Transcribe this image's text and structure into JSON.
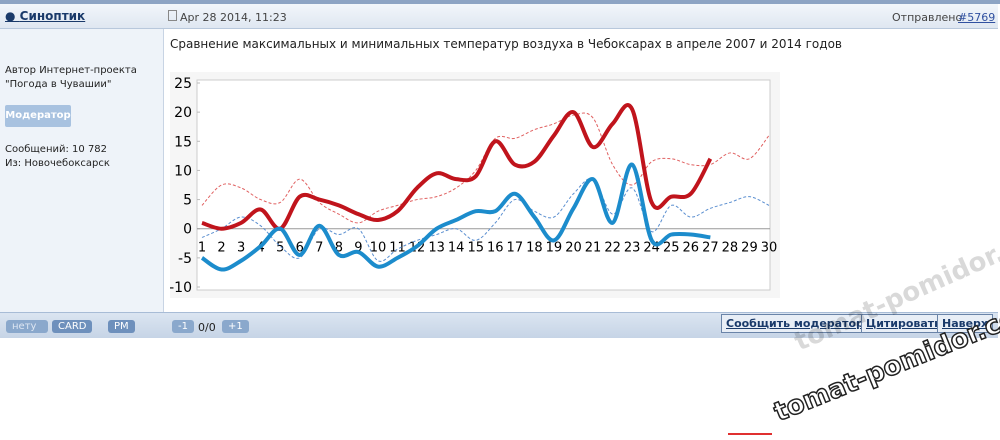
{
  "header": {
    "author": "Синоптик",
    "date": "Apr 28 2014, 11:23",
    "sent": "Отправлено",
    "post_number": "#5769"
  },
  "sidebar": {
    "about": "Автор Интернет-проекта",
    "project": "\"Погода в Чувашии\"",
    "role": "Модератор",
    "posts": "Сообщений: 10 782",
    "from": "Из: Новочебоксарск"
  },
  "post": {
    "text": "Сравнение максимальных и минимальных температур воздуха в Чебоксарах в апреле 2007 и 2014 годов"
  },
  "footer": {
    "status": "нету",
    "card": "CARD",
    "pm": "PM",
    "minus": "-1",
    "rating": "0/0",
    "plus": "+1",
    "report": "Сообщить модератору",
    "quote": "Цитировать",
    "top": "Наверх"
  },
  "watermark": "tomat-pomidor.com",
  "chart_data": {
    "type": "line",
    "categories": [
      "1",
      "2",
      "3",
      "4",
      "5",
      "6",
      "7",
      "8",
      "9",
      "10",
      "11",
      "12",
      "13",
      "14",
      "15",
      "16",
      "17",
      "18",
      "19",
      "20",
      "21",
      "22",
      "23",
      "24",
      "25",
      "26",
      "27",
      "28",
      "29",
      "30"
    ],
    "ylim": [
      -10,
      25
    ],
    "yticks": [
      -10,
      -5,
      0,
      5,
      10,
      15,
      20,
      25
    ],
    "grid": false,
    "series": [
      {
        "color": "#e06060",
        "dashed": true,
        "width": 1,
        "values": [
          4,
          7.5,
          7,
          5,
          4.5,
          8.5,
          4.5,
          2.5,
          1,
          3,
          4,
          5,
          5.5,
          7,
          10,
          15.5,
          15.5,
          17,
          18,
          19.5,
          19,
          11,
          7.5,
          11.5,
          12,
          11,
          11,
          13,
          12,
          16
        ]
      },
      {
        "color": "#5b8fd0",
        "dashed": true,
        "width": 1,
        "values": [
          -1.5,
          0,
          2,
          0.5,
          -3,
          -5,
          0,
          -1,
          0,
          -5.5,
          -3.5,
          -2,
          -1,
          0,
          -2,
          1,
          5,
          3,
          2,
          6,
          8.5,
          2.5,
          7,
          -0.5,
          4,
          2,
          3.5,
          4.5,
          5.5,
          4
        ]
      },
      {
        "color": "#c0141c",
        "dashed": false,
        "width": 4,
        "values": [
          1,
          0,
          1,
          3.3,
          0,
          5.5,
          5,
          4,
          2.5,
          1.5,
          3,
          7,
          9.5,
          8.5,
          9,
          15,
          11,
          11.5,
          16,
          20,
          14,
          18,
          20.5,
          4.5,
          5.5,
          6,
          12,
          null,
          null,
          null
        ]
      },
      {
        "color": "#1c8ccc",
        "dashed": false,
        "width": 4,
        "values": [
          -5,
          -7,
          -5.5,
          -3,
          0,
          -4.5,
          0.5,
          -4.5,
          -4,
          -6.5,
          -5,
          -3,
          0,
          1.5,
          3,
          3,
          6,
          2,
          -2,
          3.5,
          8.5,
          1,
          11,
          -2,
          -1,
          -1,
          -1.5,
          null,
          null,
          null
        ]
      }
    ]
  }
}
